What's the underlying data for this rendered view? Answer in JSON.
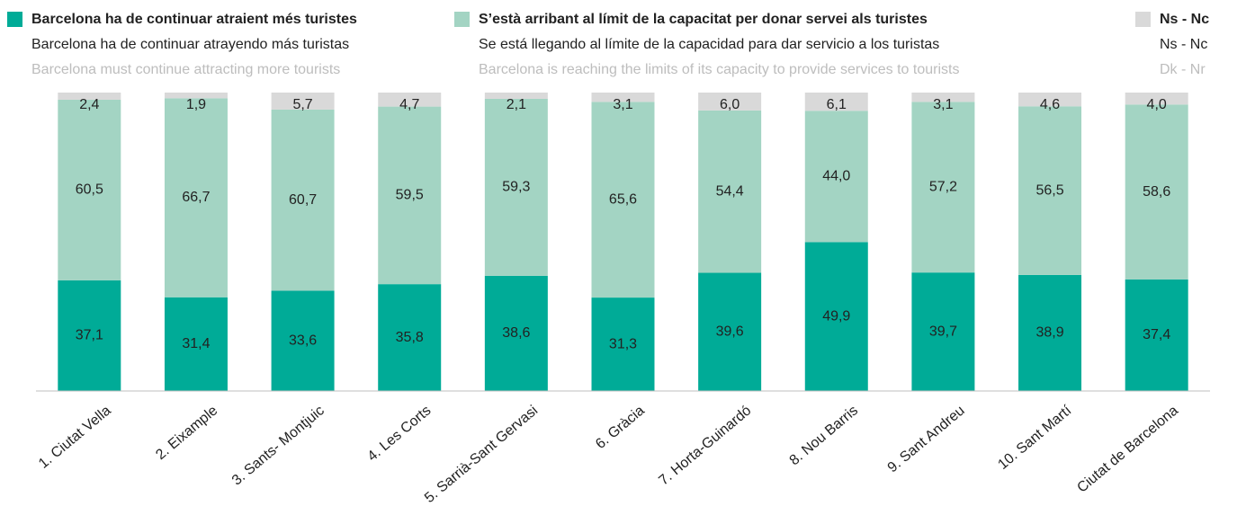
{
  "chart_data": {
    "type": "stacked_bar",
    "categories": [
      "1. Ciutat Vella",
      "2. Eixample",
      "3. Sants- Montjuic",
      "4. Les Corts",
      "5. Sarrià-Sant Gervasi",
      "6. Gràcia",
      "7. Horta-Guinardó",
      "8. Nou Barris",
      "9. Sant Andreu",
      "10. Sant Martí",
      "Ciutat de Barcelona"
    ],
    "ylim": [
      0,
      100
    ],
    "series": [
      {
        "name": "Barcelona ha de continuar atraient més turistes",
        "name_es": "Barcelona ha de continuar atrayendo más turistas",
        "name_en": "Barcelona must continue attracting more tourists",
        "color": "#00ab97",
        "values": [
          37.1,
          31.4,
          33.6,
          35.8,
          38.6,
          31.3,
          39.6,
          49.9,
          39.7,
          38.9,
          37.4
        ],
        "value_labels": [
          "37,1",
          "31,4",
          "33,6",
          "35,8",
          "38,6",
          "31,3",
          "39,6",
          "49,9",
          "39,7",
          "38,9",
          "37,4"
        ]
      },
      {
        "name": "S’està arribant al límit de la capacitat per donar servei als turistes",
        "name_es": "Se está llegando al límite de la capacidad para dar servicio a los turistas",
        "name_en": "Barcelona is reaching the limits of its capacity to provide services to tourists",
        "color": "#a3d4c3",
        "values": [
          60.5,
          66.7,
          60.7,
          59.5,
          59.3,
          65.6,
          54.4,
          44.0,
          57.2,
          56.5,
          58.6
        ],
        "value_labels": [
          "60,5",
          "66,7",
          "60,7",
          "59,5",
          "59,3",
          "65,6",
          "54,4",
          "44,0",
          "57,2",
          "56,5",
          "58,6"
        ]
      },
      {
        "name": "Ns - Nc",
        "name_es": "Ns - Nc",
        "name_en": "Dk - Nr",
        "color": "#d9d9d9",
        "values": [
          2.4,
          1.9,
          5.7,
          4.7,
          2.1,
          3.1,
          6.0,
          6.1,
          3.1,
          4.6,
          4.0
        ],
        "value_labels": [
          "2,4",
          "1,9",
          "5,7",
          "4,7",
          "2,1",
          "3,1",
          "6,0",
          "6,1",
          "3,1",
          "4,6",
          "4,0"
        ]
      }
    ]
  }
}
